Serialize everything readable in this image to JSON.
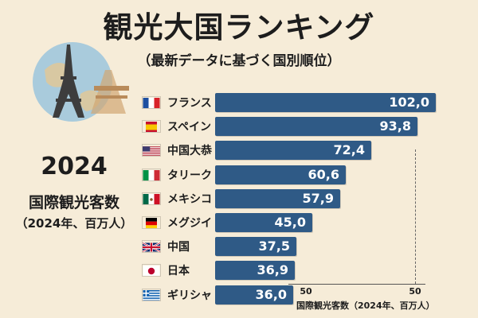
{
  "title": "観光大国ランキング",
  "subtitle": "（最新データに基づく国別順位）",
  "side_panel": {
    "year": "2024",
    "metric": "国際観光客数",
    "unit": "（2024年、百万人）"
  },
  "colors": {
    "bar": "#2f5a86",
    "background": "#f6ecd8"
  },
  "chart_data": {
    "type": "bar",
    "orientation": "horizontal",
    "categories": [
      "フランス",
      "スペイン",
      "中国大恭",
      "タリーク",
      "メキシコ",
      "メグジイ",
      "中国",
      "日本",
      "ギリシャ"
    ],
    "values": [
      102.0,
      93.8,
      72.4,
      60.6,
      57.9,
      45.0,
      37.5,
      36.9,
      36.0
    ],
    "value_labels": [
      "102,0",
      "93,8",
      "72,4",
      "60,6",
      "57,9",
      "45,0",
      "37,5",
      "36,9",
      "36,0"
    ],
    "flags": [
      "france",
      "spain",
      "usa",
      "italy",
      "mexico",
      "germany",
      "uk",
      "japan",
      "greece"
    ],
    "xlabel": "国際観光客数（2024年、百万人）",
    "x_ticks": [
      "50",
      "50"
    ],
    "xlim": [
      0,
      104
    ],
    "grid": false
  }
}
